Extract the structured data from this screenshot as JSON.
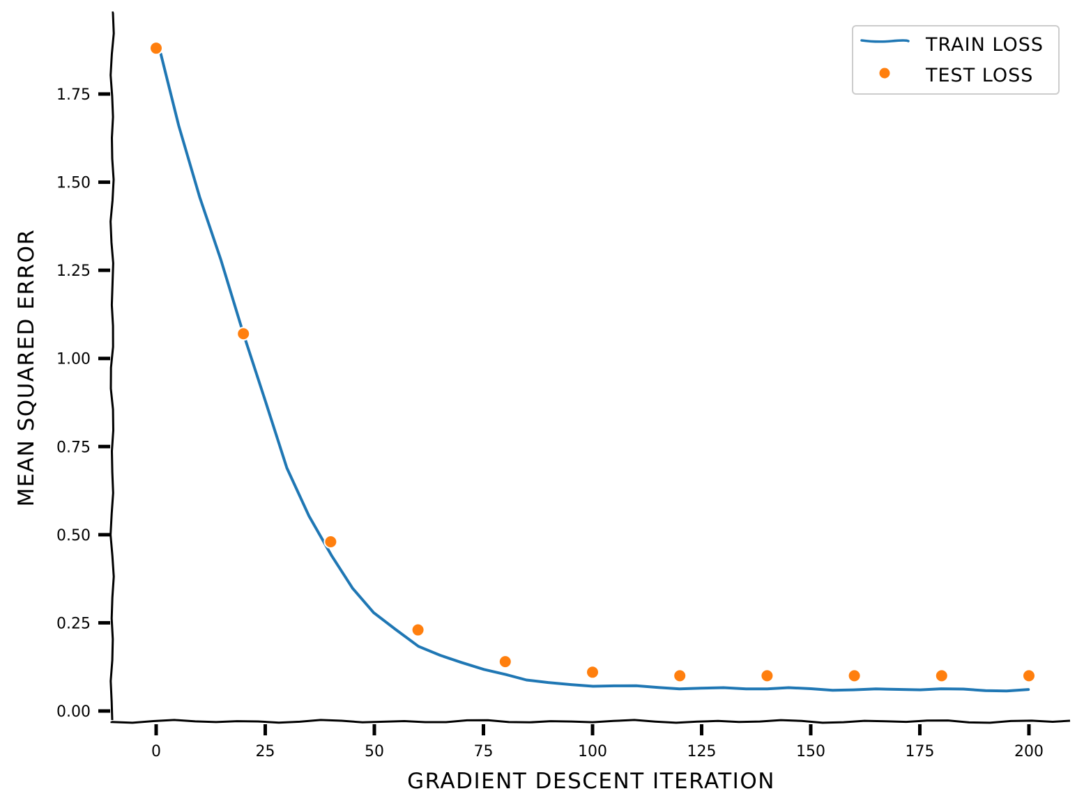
{
  "chart_data": {
    "type": "line",
    "style": "xkcd",
    "xlabel": "Gradient descent iteration",
    "ylabel": "Mean squared error",
    "xlim": [
      -10,
      210
    ],
    "ylim": [
      -0.03,
      1.98
    ],
    "xticks": [
      0,
      25,
      50,
      75,
      100,
      125,
      150,
      175,
      200
    ],
    "xtick_labels": [
      "0",
      "25",
      "50",
      "75",
      "100",
      "125",
      "150",
      "175",
      "200"
    ],
    "yticks": [
      0.0,
      0.25,
      0.5,
      0.75,
      1.0,
      1.25,
      1.5,
      1.75
    ],
    "ytick_labels": [
      "0.00",
      "0.25",
      "0.50",
      "0.75",
      "1.00",
      "1.25",
      "1.50",
      "1.75"
    ],
    "grid": false,
    "legend_position": "top-right",
    "series": [
      {
        "name": "Train loss",
        "kind": "line",
        "color": "#1f77b4",
        "x": [
          1,
          5,
          10,
          15,
          20,
          25,
          30,
          35,
          40,
          45,
          50,
          55,
          60,
          65,
          70,
          75,
          80,
          85,
          90,
          95,
          100,
          105,
          110,
          115,
          120,
          125,
          130,
          135,
          140,
          145,
          150,
          155,
          160,
          165,
          170,
          175,
          180,
          185,
          190,
          195,
          200
        ],
        "y": [
          1.86,
          1.66,
          1.46,
          1.28,
          1.07,
          0.88,
          0.69,
          0.55,
          0.44,
          0.35,
          0.28,
          0.23,
          0.185,
          0.16,
          0.135,
          0.115,
          0.105,
          0.09,
          0.08,
          0.075,
          0.072,
          0.07,
          0.068,
          0.067,
          0.066,
          0.065,
          0.065,
          0.064,
          0.063,
          0.063,
          0.062,
          0.062,
          0.062,
          0.061,
          0.061,
          0.061,
          0.061,
          0.06,
          0.06,
          0.06,
          0.06
        ]
      },
      {
        "name": "Test loss",
        "kind": "scatter",
        "color": "#ff7f0e",
        "x": [
          0,
          20,
          40,
          60,
          80,
          100,
          120,
          140,
          160,
          180,
          200
        ],
        "y": [
          1.88,
          1.07,
          0.48,
          0.23,
          0.14,
          0.11,
          0.1,
          0.1,
          0.1,
          0.1,
          0.1
        ]
      }
    ]
  }
}
